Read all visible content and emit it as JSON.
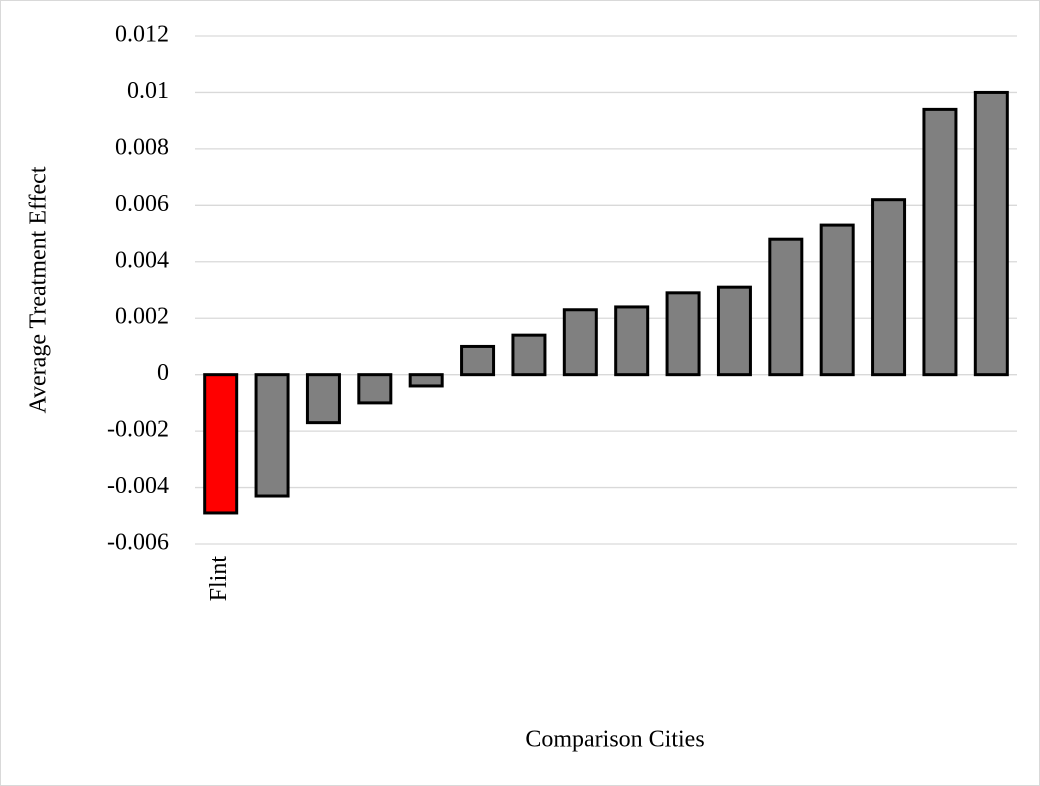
{
  "chart_data": {
    "type": "bar",
    "x_label": "Comparison Cities",
    "y_label": "Average Treatment Effect",
    "categories": [
      "Flint",
      null,
      null,
      null,
      null,
      null,
      null,
      null,
      null,
      null,
      null,
      null,
      null,
      null,
      null,
      null
    ],
    "values": [
      -0.0049,
      -0.0043,
      -0.0017,
      -0.001,
      -0.0004,
      0.001,
      0.0014,
      0.0023,
      0.0024,
      0.0029,
      0.0031,
      0.0048,
      0.0053,
      0.0062,
      0.0094,
      0.01
    ],
    "colors": [
      "#ff0000",
      "#808080",
      "#808080",
      "#808080",
      "#808080",
      "#808080",
      "#808080",
      "#808080",
      "#808080",
      "#808080",
      "#808080",
      "#808080",
      "#808080",
      "#808080",
      "#808080",
      "#808080"
    ],
    "ylim": [
      -0.006,
      0.012
    ],
    "yticks": [
      0.012,
      0.01,
      0.008,
      0.006,
      0.004,
      0.002,
      0,
      -0.002,
      -0.004,
      -0.006
    ],
    "grid": true
  }
}
